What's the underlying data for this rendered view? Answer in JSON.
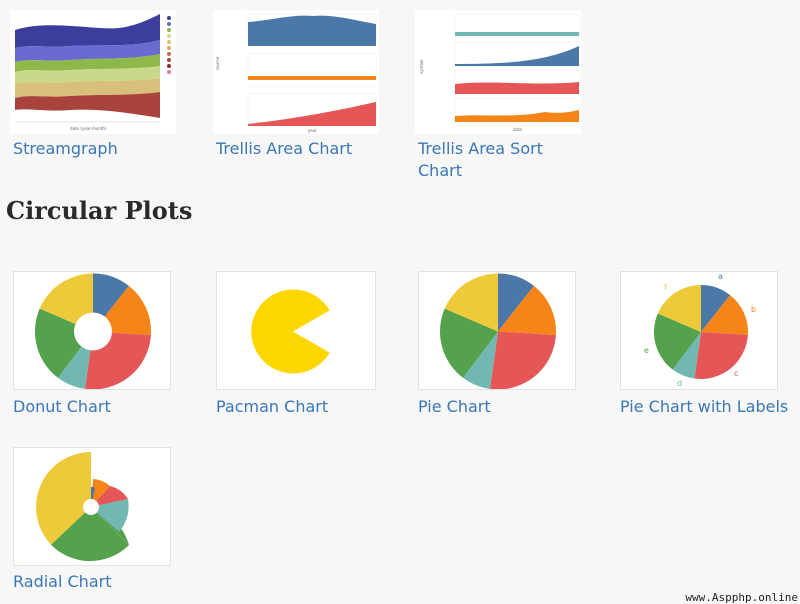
{
  "section_title": "Circular Plots",
  "watermark": "www.Aspphp.online",
  "top_cards": [
    {
      "caption": "Streamgraph"
    },
    {
      "caption": "Trellis Area Chart"
    },
    {
      "caption": "Trellis Area Sort Chart"
    }
  ],
  "circular_cards": [
    {
      "caption": "Donut Chart"
    },
    {
      "caption": "Pacman Chart"
    },
    {
      "caption": "Pie Chart"
    },
    {
      "caption": "Pie Chart with Labels"
    },
    {
      "caption": "Radial Chart"
    }
  ],
  "pie_labels": [
    "a",
    "b",
    "c",
    "d",
    "e",
    "f"
  ],
  "colors": {
    "blue": "#4c78a8",
    "orange": "#f58518",
    "red": "#e45756",
    "teal": "#72b7b2",
    "green": "#54a24b",
    "yellow": "#eeca3b",
    "pacman": "#ffd700",
    "link": "#3a77b5"
  }
}
